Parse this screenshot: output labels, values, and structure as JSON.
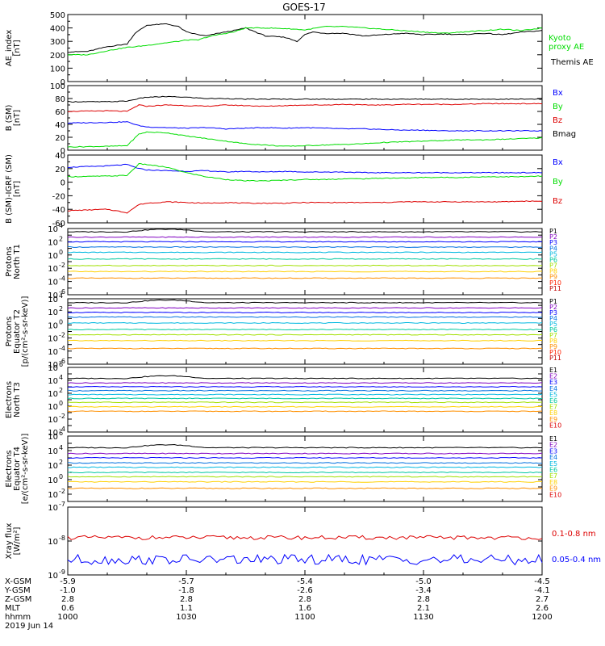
{
  "title": "GOES-17",
  "colors": {
    "black": "#000000",
    "blue": "#0000ff",
    "green": "#00dd00",
    "red": "#dd0000"
  },
  "time_axis": {
    "start_hhmm": "1000",
    "end_hhmm": "1200",
    "date": "2019 Jun 14"
  },
  "chart_data": [
    {
      "id": "ae",
      "type": "line",
      "ylabel": "AE_index\n[nT]",
      "ylim": [
        0,
        500
      ],
      "yticks": [
        "0",
        "100",
        "200",
        "300",
        "400",
        "500"
      ],
      "x": [
        0,
        5,
        10,
        15,
        17,
        20,
        25,
        28,
        30,
        33,
        35,
        38,
        42,
        45,
        50,
        55,
        58,
        60,
        62,
        65,
        70,
        75,
        80,
        85,
        90,
        95,
        100,
        105,
        110,
        115,
        120
      ],
      "series": [
        {
          "name": "Themis AE",
          "color": "#000000",
          "values": [
            220,
            225,
            260,
            280,
            360,
            420,
            430,
            410,
            370,
            350,
            340,
            360,
            380,
            400,
            340,
            330,
            300,
            350,
            370,
            360,
            360,
            340,
            350,
            360,
            350,
            355,
            350,
            360,
            350,
            370,
            380
          ]
        },
        {
          "name": "Kyoto\nproxy AE",
          "color": "#00dd00",
          "values": [
            200,
            200,
            230,
            255,
            260,
            270,
            290,
            300,
            310,
            310,
            330,
            350,
            370,
            400,
            400,
            395,
            390,
            385,
            395,
            410,
            410,
            400,
            390,
            380,
            370,
            360,
            370,
            380,
            390,
            380,
            400
          ]
        }
      ]
    },
    {
      "id": "bsm",
      "type": "line",
      "ylabel": "B (SM)\n[nT]",
      "ylim": [
        0,
        100
      ],
      "yticks": [
        "0",
        "20",
        "40",
        "60",
        "80",
        "100"
      ],
      "x": [
        0,
        10,
        15,
        18,
        20,
        25,
        30,
        35,
        40,
        45,
        50,
        55,
        60,
        65,
        70,
        75,
        80,
        85,
        90,
        95,
        100,
        105,
        110,
        115,
        120
      ],
      "series": [
        {
          "name": "Bx",
          "color": "#0000ff",
          "values": [
            42,
            43,
            44,
            38,
            36,
            35,
            34,
            35,
            33,
            34,
            35,
            34,
            35,
            34,
            33,
            33,
            32,
            31,
            31,
            30,
            30,
            30,
            30,
            30,
            30
          ]
        },
        {
          "name": "By",
          "color": "#00dd00",
          "values": [
            5,
            6,
            7,
            25,
            28,
            27,
            22,
            18,
            14,
            10,
            8,
            6,
            7,
            8,
            9,
            10,
            12,
            13,
            14,
            15,
            16,
            16,
            17,
            18,
            19
          ]
        },
        {
          "name": "Bz",
          "color": "#dd0000",
          "values": [
            60,
            61,
            60,
            70,
            68,
            70,
            69,
            68,
            70,
            69,
            68,
            69,
            70,
            70,
            71,
            70,
            70,
            71,
            71,
            71,
            71,
            72,
            72,
            72,
            72
          ]
        },
        {
          "name": "Bmag",
          "color": "#000000",
          "values": [
            75,
            75,
            76,
            80,
            82,
            83,
            82,
            80,
            80,
            79,
            79,
            79,
            79,
            79,
            79,
            79,
            79,
            79,
            79,
            79,
            79,
            79,
            79,
            79,
            79
          ]
        }
      ]
    },
    {
      "id": "bigrf",
      "type": "line",
      "ylabel": "B (SM)-IGRF (SM)\n[nT]",
      "ylim": [
        -60,
        40
      ],
      "yticks": [
        "-60",
        "-40",
        "-20",
        "0",
        "20",
        "40"
      ],
      "x": [
        0,
        10,
        15,
        18,
        20,
        25,
        30,
        35,
        40,
        45,
        50,
        55,
        60,
        65,
        70,
        75,
        80,
        85,
        90,
        95,
        100,
        105,
        110,
        115,
        120
      ],
      "series": [
        {
          "name": "Bx",
          "color": "#0000ff",
          "values": [
            22,
            24,
            26,
            20,
            18,
            17,
            16,
            17,
            15,
            16,
            15,
            16,
            15,
            15,
            15,
            14,
            14,
            14,
            14,
            14,
            14,
            14,
            14,
            14,
            14
          ]
        },
        {
          "name": "By",
          "color": "#00dd00",
          "values": [
            8,
            9,
            10,
            27,
            26,
            22,
            14,
            8,
            4,
            2,
            2,
            3,
            4,
            4,
            5,
            5,
            6,
            6,
            7,
            7,
            7,
            8,
            8,
            8,
            9
          ]
        },
        {
          "name": "Bz",
          "color": "#dd0000",
          "values": [
            -42,
            -40,
            -45,
            -33,
            -31,
            -29,
            -30,
            -31,
            -30,
            -31,
            -31,
            -31,
            -30,
            -30,
            -30,
            -30,
            -30,
            -29,
            -29,
            -29,
            -29,
            -29,
            -29,
            -28,
            -28
          ]
        }
      ]
    },
    {
      "id": "protons_north",
      "type": "line",
      "yscale": "log",
      "ylabel": "Protons\nNorth T1",
      "ylim_exp": [
        -6,
        4
      ],
      "yticks": [
        {
          "b": "10",
          "e": "-6",
          "p": -6
        },
        {
          "b": "10",
          "e": "-4",
          "p": -4
        },
        {
          "b": "10",
          "e": "-2",
          "p": -2
        },
        {
          "b": "10",
          "e": "0",
          "p": 0
        },
        {
          "b": "10",
          "e": "2",
          "p": 2
        },
        {
          "b": "10",
          "e": "4",
          "p": 4
        }
      ],
      "channels": [
        {
          "name": "P1",
          "color": "#000000",
          "log": 3.5
        },
        {
          "name": "P2",
          "color": "#8000c0",
          "log": 2.7
        },
        {
          "name": "P3",
          "color": "#0000ff",
          "log": 2.0
        },
        {
          "name": "P4",
          "color": "#0070e0",
          "log": 1.2
        },
        {
          "name": "P5",
          "color": "#00b8e0",
          "log": 0.4
        },
        {
          "name": "P6",
          "color": "#00c8a0",
          "log": -0.6
        },
        {
          "name": "P7",
          "color": "#a0e000",
          "log": -1.6
        },
        {
          "name": "P8",
          "color": "#ffd000",
          "log": -2.5
        },
        {
          "name": "P9",
          "color": "#ff9000",
          "log": -3.5
        },
        {
          "name": "P10",
          "color": "#ff2000",
          "log": -9
        },
        {
          "name": "P11",
          "color": "#c00000",
          "log": -9
        }
      ]
    },
    {
      "id": "protons_equator",
      "type": "line",
      "yscale": "log",
      "ylabel": "Protons\nEquator T2\n[p/(cm²-s-sr-keV)]",
      "ylim_exp": [
        -6,
        4
      ],
      "yticks": [
        {
          "b": "10",
          "e": "-6",
          "p": -6
        },
        {
          "b": "10",
          "e": "-4",
          "p": -4
        },
        {
          "b": "10",
          "e": "-2",
          "p": -2
        },
        {
          "b": "10",
          "e": "0",
          "p": 0
        },
        {
          "b": "10",
          "e": "2",
          "p": 2
        },
        {
          "b": "10",
          "e": "4",
          "p": 4
        }
      ],
      "channels": [
        {
          "name": "P1",
          "color": "#000000",
          "log": 3.4
        },
        {
          "name": "P2",
          "color": "#8000c0",
          "log": 2.6
        },
        {
          "name": "P3",
          "color": "#0000ff",
          "log": 1.9
        },
        {
          "name": "P4",
          "color": "#0070e0",
          "log": 1.2
        },
        {
          "name": "P5",
          "color": "#00b8e0",
          "log": 0.3
        },
        {
          "name": "P6",
          "color": "#00c8a0",
          "log": -0.7
        },
        {
          "name": "P7",
          "color": "#a0e000",
          "log": -1.5
        },
        {
          "name": "P8",
          "color": "#ffd000",
          "log": -2.4
        },
        {
          "name": "P9",
          "color": "#ff9000",
          "log": -3.6
        },
        {
          "name": "P10",
          "color": "#ff2000",
          "log": -9
        },
        {
          "name": "P11",
          "color": "#c00000",
          "log": -9
        }
      ]
    },
    {
      "id": "electrons_north",
      "type": "line",
      "yscale": "log",
      "ylabel": "Electrons\nNorth T3",
      "ylim_exp": [
        -4,
        6
      ],
      "yticks": [
        {
          "b": "10",
          "e": "-4",
          "p": -4
        },
        {
          "b": "10",
          "e": "-2",
          "p": -2
        },
        {
          "b": "10",
          "e": "0",
          "p": 0
        },
        {
          "b": "10",
          "e": "2",
          "p": 2
        },
        {
          "b": "10",
          "e": "4",
          "p": 4
        },
        {
          "b": "10",
          "e": "6",
          "p": 6
        }
      ],
      "channels": [
        {
          "name": "E1",
          "color": "#000000",
          "log": 4.3
        },
        {
          "name": "E2",
          "color": "#8000c0",
          "log": 3.6
        },
        {
          "name": "E3",
          "color": "#0000ff",
          "log": 3.0
        },
        {
          "name": "E4",
          "color": "#0070e0",
          "log": 2.4
        },
        {
          "name": "E5",
          "color": "#00b8e0",
          "log": 1.8
        },
        {
          "name": "E6",
          "color": "#00c8a0",
          "log": 1.2
        },
        {
          "name": "E7",
          "color": "#a0e000",
          "log": 0.6
        },
        {
          "name": "E8",
          "color": "#ffd000",
          "log": -0.1
        },
        {
          "name": "E9",
          "color": "#ff9000",
          "log": -0.8
        },
        {
          "name": "E10",
          "color": "#dd0000",
          "log": -9
        }
      ]
    },
    {
      "id": "electrons_equator",
      "type": "line",
      "yscale": "log",
      "ylabel": "Electrons\nEquator T4\n[e/(cm²-s-sr-keV)]",
      "ylim_exp": [
        -3,
        6
      ],
      "yticks": [
        {
          "b": "10",
          "e": "-2",
          "p": -2
        },
        {
          "b": "10",
          "e": "0",
          "p": 0
        },
        {
          "b": "10",
          "e": "2",
          "p": 2
        },
        {
          "b": "10",
          "e": "4",
          "p": 4
        },
        {
          "b": "10",
          "e": "6",
          "p": 6
        }
      ],
      "channels": [
        {
          "name": "E1",
          "color": "#000000",
          "log": 4.4
        },
        {
          "name": "E2",
          "color": "#8000c0",
          "log": 3.6
        },
        {
          "name": "E3",
          "color": "#0000ff",
          "log": 3.0
        },
        {
          "name": "E4",
          "color": "#0070e0",
          "log": 2.3
        },
        {
          "name": "E5",
          "color": "#00b8e0",
          "log": 1.7
        },
        {
          "name": "E6",
          "color": "#00c8a0",
          "log": 1.0
        },
        {
          "name": "E7",
          "color": "#a0e000",
          "log": 0.4
        },
        {
          "name": "E8",
          "color": "#ffd000",
          "log": -0.3
        },
        {
          "name": "E9",
          "color": "#ff9000",
          "log": -1.2
        },
        {
          "name": "E10",
          "color": "#dd0000",
          "log": -9
        }
      ]
    },
    {
      "id": "xray",
      "type": "line",
      "yscale": "log",
      "ylabel": "Xray flux\n[W/m²]",
      "ylim_exp": [
        -9,
        -7
      ],
      "yticks": [
        {
          "b": "10",
          "e": "-9",
          "p": -9
        },
        {
          "b": "10",
          "e": "-8",
          "p": -8
        },
        {
          "b": "10",
          "e": "-7",
          "p": -7
        }
      ],
      "series": [
        {
          "name": "0.1-0.8 nm",
          "color": "#dd0000",
          "log_level": -7.9
        },
        {
          "name": "0.05-0.4 nm",
          "color": "#0000ff",
          "log_level": -8.55
        }
      ]
    }
  ],
  "orbit": {
    "labels": [
      "X-GSM",
      "Y-GSM",
      "Z-GSM",
      "MLT",
      "hhmm"
    ],
    "columns": [
      {
        "x": "-5.9",
        "y": "-1.0",
        "z": "2.8",
        "mlt": "0.6",
        "hhmm": "1000"
      },
      {
        "x": "-5.7",
        "y": "-1.8",
        "z": "2.8",
        "mlt": "1.1",
        "hhmm": "1030"
      },
      {
        "x": "-5.4",
        "y": "-2.6",
        "z": "2.8",
        "mlt": "1.6",
        "hhmm": "1100"
      },
      {
        "x": "-5.0",
        "y": "-3.4",
        "z": "2.8",
        "mlt": "2.1",
        "hhmm": "1130"
      },
      {
        "x": "-4.5",
        "y": "-4.1",
        "z": "2.7",
        "mlt": "2.6",
        "hhmm": "1200"
      }
    ],
    "date": "2019 Jun 14"
  }
}
